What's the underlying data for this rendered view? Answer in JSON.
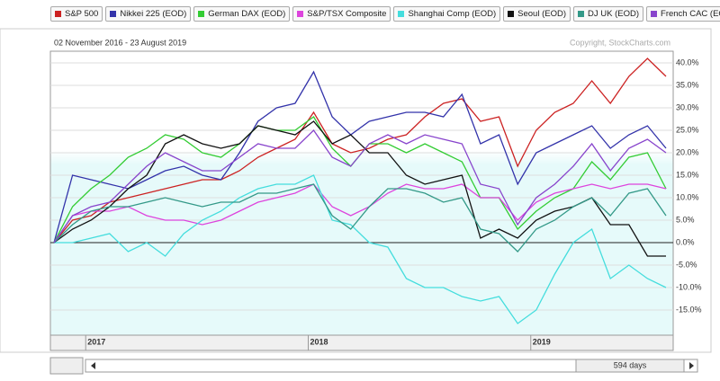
{
  "chart_data": {
    "type": "line",
    "subtitle": "02 November 2016 - 23 August 2019",
    "copyright": "Copyright, StockCharts.com",
    "range_label": "594 days",
    "categories": [
      null,
      null,
      "2017",
      null,
      null,
      null,
      null,
      null,
      null,
      null,
      null,
      null,
      null,
      null,
      "2018",
      null,
      null,
      null,
      null,
      null,
      null,
      null,
      null,
      null,
      null,
      null,
      "2019",
      null,
      null,
      null,
      null,
      null,
      null,
      null
    ],
    "ylim": [
      -20.6,
      42.6
    ],
    "yticks": [
      {
        "value": 40,
        "label": "40.0%"
      },
      {
        "value": 35,
        "label": "35.0%"
      },
      {
        "value": 30,
        "label": "30.0%"
      },
      {
        "value": 25,
        "label": "25.0%"
      },
      {
        "value": 20,
        "label": "20.0%"
      },
      {
        "value": 15,
        "label": "15.0%"
      },
      {
        "value": 10,
        "label": "10.0%"
      },
      {
        "value": 5,
        "label": "5.0%"
      },
      {
        "value": 0,
        "label": "0.0%"
      },
      {
        "value": -5,
        "label": "-5.0%"
      },
      {
        "value": -10,
        "label": "-10.0%"
      },
      {
        "value": -15,
        "label": "-15.0%"
      }
    ],
    "grid": true,
    "series": [
      {
        "name": "S&P 500",
        "color": "#cc2222",
        "values": [
          0,
          5,
          6,
          9,
          10,
          11,
          12,
          13,
          14,
          14,
          16,
          19,
          21,
          23,
          29,
          22,
          20,
          21,
          23,
          24,
          28,
          31,
          32,
          27,
          28,
          17,
          25,
          29,
          31,
          36,
          31,
          37,
          41,
          37
        ]
      },
      {
        "name": "Nikkei 225 (EOD)",
        "color": "#3333aa",
        "values": [
          0,
          15,
          14,
          13,
          12,
          14,
          16,
          17,
          15,
          14,
          20,
          27,
          30,
          31,
          38,
          28,
          24,
          27,
          28,
          29,
          29,
          28,
          33,
          22,
          24,
          13,
          20,
          22,
          24,
          26,
          21,
          24,
          26,
          21
        ]
      },
      {
        "name": "German DAX (EOD)",
        "color": "#33cc33",
        "values": [
          0,
          8,
          12,
          15,
          19,
          21,
          24,
          23,
          20,
          19,
          22,
          26,
          25,
          25,
          28,
          21,
          17,
          22,
          22,
          20,
          22,
          20,
          18,
          10,
          10,
          3,
          7,
          10,
          12,
          18,
          14,
          19,
          20,
          12
        ]
      },
      {
        "name": "S&P/TSX Composite",
        "color": "#dd44dd",
        "values": [
          0,
          6,
          7,
          7,
          8,
          6,
          5,
          5,
          4,
          5,
          7,
          9,
          10,
          11,
          13,
          8,
          6,
          8,
          11,
          13,
          12,
          12,
          13,
          10,
          10,
          5,
          9,
          11,
          12,
          13,
          12,
          13,
          13,
          12
        ]
      },
      {
        "name": "Shanghai Comp (EOD)",
        "color": "#44dddd",
        "values": [
          0,
          0,
          1,
          2,
          -2,
          0,
          -3,
          2,
          5,
          7,
          10,
          12,
          13,
          13,
          15,
          5,
          4,
          0,
          -1,
          -8,
          -10,
          -10,
          -12,
          -13,
          -12,
          -18,
          -15,
          -7,
          0,
          3,
          -8,
          -5,
          -8,
          -10
        ]
      },
      {
        "name": "Seoul (EOD)",
        "color": "#111111",
        "values": [
          0,
          3,
          5,
          8,
          12,
          15,
          22,
          24,
          22,
          21,
          22,
          26,
          25,
          24,
          27,
          22,
          24,
          20,
          20,
          15,
          13,
          14,
          15,
          1,
          3,
          1,
          5,
          7,
          8,
          10,
          4,
          4,
          -3,
          -3
        ]
      },
      {
        "name": "DJ UK (EOD)",
        "color": "#339988",
        "values": [
          0,
          4,
          7,
          8,
          8,
          9,
          10,
          9,
          8,
          9,
          9,
          11,
          11,
          12,
          13,
          6,
          3,
          8,
          12,
          12,
          11,
          9,
          10,
          3,
          2,
          -2,
          3,
          5,
          8,
          10,
          6,
          11,
          12,
          6
        ]
      },
      {
        "name": "French CAC (EOD)",
        "color": "#8844cc",
        "values": [
          0,
          6,
          8,
          9,
          13,
          17,
          20,
          18,
          16,
          16,
          19,
          22,
          21,
          21,
          25,
          19,
          17,
          22,
          24,
          22,
          24,
          23,
          22,
          13,
          12,
          4,
          10,
          13,
          17,
          22,
          16,
          21,
          23,
          20
        ]
      }
    ]
  }
}
